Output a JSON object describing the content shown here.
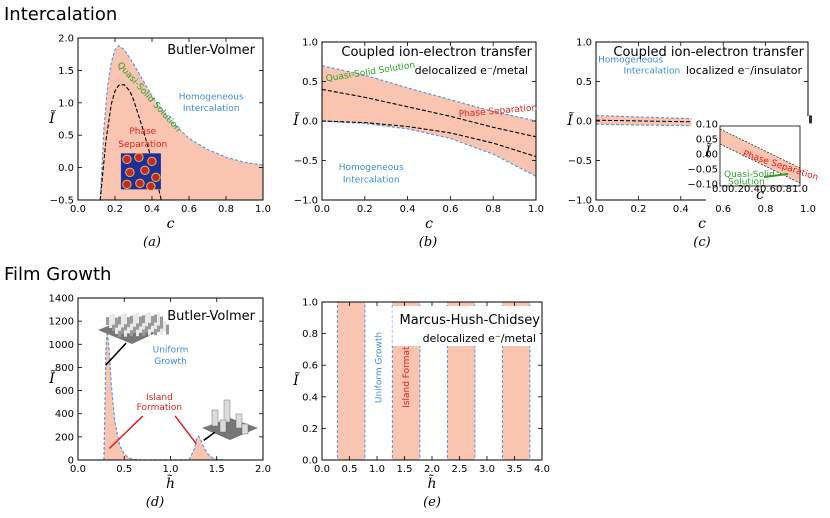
{
  "sections": {
    "intercalation": "Intercalation",
    "film_growth": "Film Growth"
  },
  "colors": {
    "fill": "#f9c5b0",
    "boundary": "#5a9be0",
    "blue_text": "#3a8fd8",
    "red_text": "#e02020",
    "green_text": "#2aa02a",
    "dashed": "#000000"
  },
  "chart_data": [
    {
      "id": "a",
      "type": "area",
      "panel_label": "(a)",
      "title": "Butler-Volmer",
      "subtitle": "",
      "xlabel": "c",
      "ylabel": "Ĩ",
      "xlim": [
        0.0,
        1.0
      ],
      "ylim": [
        -0.5,
        2.0
      ],
      "xticks": [
        "0.0",
        "0.2",
        "0.4",
        "0.6",
        "0.8",
        "1.0"
      ],
      "yticks": [
        "−0.5",
        "0.0",
        "0.5",
        "1.0",
        "1.5",
        "2.0"
      ],
      "series": [
        {
          "name": "upper boundary",
          "x": [
            0.12,
            0.14,
            0.16,
            0.18,
            0.2,
            0.22,
            0.25,
            0.3,
            0.35,
            0.4,
            0.5,
            0.6,
            0.7,
            0.8,
            0.9,
            1.0
          ],
          "values": [
            -0.5,
            0.6,
            1.25,
            1.62,
            1.82,
            1.88,
            1.82,
            1.6,
            1.35,
            1.1,
            0.72,
            0.45,
            0.28,
            0.16,
            0.08,
            0.04
          ]
        },
        {
          "name": "spinodal",
          "x": [
            0.12,
            0.15,
            0.18,
            0.2,
            0.22,
            0.25,
            0.28,
            0.3,
            0.35,
            0.4,
            0.45
          ],
          "values": [
            -0.5,
            0.4,
            0.98,
            1.18,
            1.27,
            1.28,
            1.18,
            1.05,
            0.6,
            0.1,
            -0.5
          ]
        }
      ],
      "annotations": [
        {
          "text": "Quasi-Solid Solution",
          "color": "green"
        },
        {
          "text": "Homogeneous",
          "color": "blue"
        },
        {
          "text": "Intercalation",
          "color": "blue"
        },
        {
          "text": "Phase",
          "color": "red"
        },
        {
          "text": "Separation",
          "color": "red"
        }
      ]
    },
    {
      "id": "b",
      "type": "area",
      "panel_label": "(b)",
      "title": "Coupled ion-electron transfer",
      "subtitle": "delocalized e⁻/metal",
      "xlabel": "c",
      "ylabel": "Ĩ",
      "xlim": [
        0.0,
        1.0
      ],
      "ylim": [
        -1.0,
        1.0
      ],
      "xticks": [
        "0.0",
        "0.2",
        "0.4",
        "0.6",
        "0.8",
        "1.0"
      ],
      "yticks": [
        "−1.0",
        "−0.5",
        "0.0",
        "0.5",
        "1.0"
      ],
      "series": [
        {
          "name": "upper boundary",
          "x": [
            0.0,
            0.2,
            0.4,
            0.6,
            0.8,
            1.0
          ],
          "values": [
            0.7,
            0.58,
            0.42,
            0.27,
            0.12,
            0.0
          ]
        },
        {
          "name": "lower boundary",
          "x": [
            0.0,
            0.2,
            0.4,
            0.6,
            0.8,
            1.0
          ],
          "values": [
            0.0,
            -0.03,
            -0.1,
            -0.22,
            -0.42,
            -0.7
          ]
        },
        {
          "name": "spinodal upper",
          "x": [
            0.0,
            0.2,
            0.4,
            0.6,
            0.8,
            1.0
          ],
          "values": [
            0.4,
            0.3,
            0.18,
            0.06,
            -0.08,
            -0.2
          ]
        },
        {
          "name": "spinodal lower",
          "x": [
            0.0,
            0.2,
            0.4,
            0.6,
            0.8,
            1.0
          ],
          "values": [
            0.0,
            -0.02,
            -0.07,
            -0.15,
            -0.28,
            -0.45
          ]
        }
      ],
      "annotations": [
        {
          "text": "Quasi-Solid Solution",
          "color": "green"
        },
        {
          "text": "Phase Separation",
          "color": "red"
        },
        {
          "text": "Homogeneous",
          "color": "blue"
        },
        {
          "text": "Intercalation",
          "color": "blue"
        }
      ]
    },
    {
      "id": "c",
      "type": "area",
      "panel_label": "(c)",
      "title": "Coupled ion-electron transfer",
      "subtitle": "localized e⁻/insulator",
      "xlabel": "c",
      "ylabel": "Ĩ",
      "xlim": [
        0.0,
        1.0
      ],
      "ylim": [
        -1.0,
        1.0
      ],
      "xticks": [
        "0.0",
        "0.2",
        "0.4",
        "0.6",
        "0.8",
        "1.0"
      ],
      "yticks": [
        "−1.0",
        "−0.5",
        "0.0",
        "0.5",
        "1.0"
      ],
      "series": [
        {
          "name": "upper boundary",
          "x": [
            0.0,
            0.2,
            0.45
          ],
          "values": [
            0.07,
            0.05,
            0.03
          ]
        },
        {
          "name": "lower boundary",
          "x": [
            0.0,
            0.2,
            0.45
          ],
          "values": [
            -0.04,
            -0.05,
            -0.06
          ]
        }
      ],
      "annotations": [
        {
          "text": "Homogeneous",
          "color": "blue"
        },
        {
          "text": "Intercalation",
          "color": "blue"
        }
      ],
      "inset": {
        "xlim": [
          0.0,
          1.0
        ],
        "ylim": [
          -0.1,
          0.1
        ],
        "xticks": [
          "0.0",
          "0.2",
          "0.4",
          "0.6",
          "0.8",
          "1.0"
        ],
        "yticks": [
          "0.10",
          "0.05",
          "0.00",
          "−0.05",
          "−0.10"
        ],
        "xlabel": "c",
        "ylabel": "Ĩ",
        "series": [
          {
            "name": "upper",
            "x": [
              0.0,
              1.0
            ],
            "values": [
              0.09,
              -0.04
            ]
          },
          {
            "name": "lower",
            "x": [
              0.0,
              1.0
            ],
            "values": [
              0.04,
              -0.09
            ]
          }
        ],
        "annotations": [
          {
            "text": "Phase Separation",
            "color": "red"
          },
          {
            "text": "Quasi-Solid",
            "color": "green"
          },
          {
            "text": "Solution",
            "color": "green"
          }
        ]
      }
    },
    {
      "id": "d",
      "type": "area",
      "panel_label": "(d)",
      "title": "Butler-Volmer",
      "subtitle": "",
      "xlabel": "h̃",
      "ylabel": "Ĩ",
      "xlim": [
        0.0,
        2.0
      ],
      "ylim": [
        0,
        1400
      ],
      "xticks": [
        "0.0",
        "0.5",
        "1.0",
        "1.5",
        "2.0"
      ],
      "yticks": [
        "0",
        "200",
        "400",
        "600",
        "800",
        "1000",
        "1200",
        "1400"
      ],
      "series": [
        {
          "name": "boundary",
          "x": [
            0.28,
            0.29,
            0.3,
            0.31,
            0.32,
            0.34,
            0.36,
            0.4,
            0.45,
            0.5,
            0.55,
            0.6,
            0.7,
            0.8,
            1.2,
            1.26,
            1.28,
            1.3,
            1.32,
            1.36,
            1.4,
            1.45,
            1.5,
            1.6
          ],
          "values": [
            0,
            400,
            900,
            1080,
            1090,
            900,
            650,
            320,
            130,
            50,
            18,
            6,
            0,
            0,
            0,
            100,
            180,
            205,
            185,
            110,
            55,
            20,
            6,
            0
          ]
        }
      ],
      "annotations": [
        {
          "text": "Uniform",
          "color": "blue"
        },
        {
          "text": "Growth",
          "color": "blue"
        },
        {
          "text": "Island",
          "color": "red"
        },
        {
          "text": "Formation",
          "color": "red"
        }
      ]
    },
    {
      "id": "e",
      "type": "bar",
      "panel_label": "(e)",
      "title": "Marcus-Hush-Chidsey",
      "subtitle": "delocalized e⁻/metal",
      "xlabel": "h̃",
      "ylabel": "Ĩ",
      "xlim": [
        0.0,
        4.0
      ],
      "ylim": [
        0.0,
        1.0
      ],
      "xticks": [
        "0.0",
        "0.5",
        "1.0",
        "1.5",
        "2.0",
        "2.5",
        "3.0",
        "3.5",
        "4.0"
      ],
      "yticks": [
        "0.0",
        "0.2",
        "0.4",
        "0.6",
        "0.8",
        "1.0"
      ],
      "bands": [
        [
          0.28,
          0.78
        ],
        [
          1.28,
          1.78
        ],
        [
          2.28,
          2.78
        ],
        [
          3.28,
          3.78
        ]
      ],
      "annotations": [
        {
          "text": "Uniform Growth",
          "color": "blue"
        },
        {
          "text": "Island Formation",
          "color": "red"
        }
      ]
    }
  ]
}
